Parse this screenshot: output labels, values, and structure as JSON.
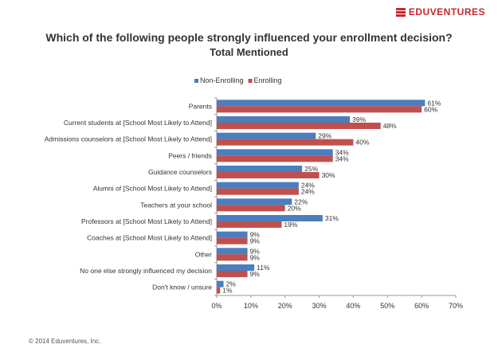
{
  "logo": {
    "text": "EDUVENTURES",
    "color": "#c8272e"
  },
  "chart_data": {
    "type": "bar",
    "orientation": "horizontal",
    "title": "Which of the following people strongly influenced your enrollment decision?",
    "subtitle": "Total Mentioned",
    "categories": [
      "Parents",
      "Current students at [School Most Likely to Attend]",
      "Admissions counselors at [School Most Likely to Attend]",
      "Peers / friends",
      "Guidance counselors",
      "Alumni of [School Most Likely to Attend]",
      "Teachers at your school",
      "Professors at [School Most Likely to Attend]",
      "Coaches at [School Most Likely to Attend]",
      "Other",
      "No one else strongly influenced my decision",
      "Don't know / unsure"
    ],
    "series": [
      {
        "name": "Non-Enrolling",
        "color": "#4a7ebf",
        "values": [
          61,
          39,
          29,
          34,
          25,
          24,
          22,
          31,
          9,
          9,
          11,
          2
        ]
      },
      {
        "name": "Enrolling",
        "color": "#c0504d",
        "values": [
          60,
          48,
          40,
          34,
          30,
          24,
          20,
          19,
          9,
          9,
          9,
          1
        ]
      }
    ],
    "value_suffix": "%",
    "xlim": [
      0,
      70
    ],
    "xticks": [
      "0%",
      "10%",
      "20%",
      "30%",
      "40%",
      "50%",
      "60%",
      "70%"
    ],
    "legend_position": "top-left",
    "grid": false
  },
  "footer": {
    "copyright": "© 2014 Eduventures, Inc."
  }
}
